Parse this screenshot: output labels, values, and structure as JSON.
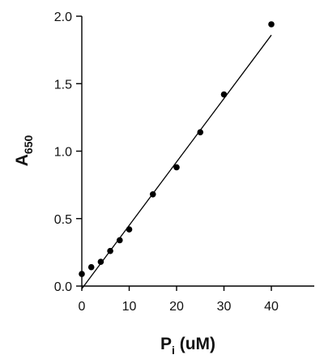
{
  "chart_data": {
    "type": "scatter",
    "title": "",
    "xlabel": {
      "main": "P",
      "subscript": "i",
      "suffix": " (uM)"
    },
    "ylabel": {
      "main": "A",
      "subscript": "650"
    },
    "xlim": [
      0,
      40
    ],
    "ylim": [
      0,
      2.0
    ],
    "x_ticks": [
      0,
      10,
      20,
      30,
      40
    ],
    "y_ticks": [
      0.0,
      0.5,
      1.0,
      1.5,
      2.0
    ],
    "x_tick_labels": [
      "0",
      "10",
      "20",
      "30",
      "40"
    ],
    "y_tick_labels": [
      "0.0",
      "0.5",
      "1.0",
      "1.5",
      "2.0"
    ],
    "grid": false,
    "legend": "none",
    "points": [
      {
        "x": 0,
        "y": 0.09
      },
      {
        "x": 2,
        "y": 0.14
      },
      {
        "x": 4,
        "y": 0.18
      },
      {
        "x": 6,
        "y": 0.26
      },
      {
        "x": 8,
        "y": 0.34
      },
      {
        "x": 10,
        "y": 0.42
      },
      {
        "x": 15,
        "y": 0.68
      },
      {
        "x": 20,
        "y": 0.88
      },
      {
        "x": 25,
        "y": 1.14
      },
      {
        "x": 30,
        "y": 1.42
      },
      {
        "x": 40,
        "y": 1.94
      }
    ],
    "fit_line": {
      "x": [
        0,
        40
      ],
      "y": [
        -0.02,
        1.86
      ]
    },
    "point_color": "#000000",
    "line_color": "#000000"
  }
}
